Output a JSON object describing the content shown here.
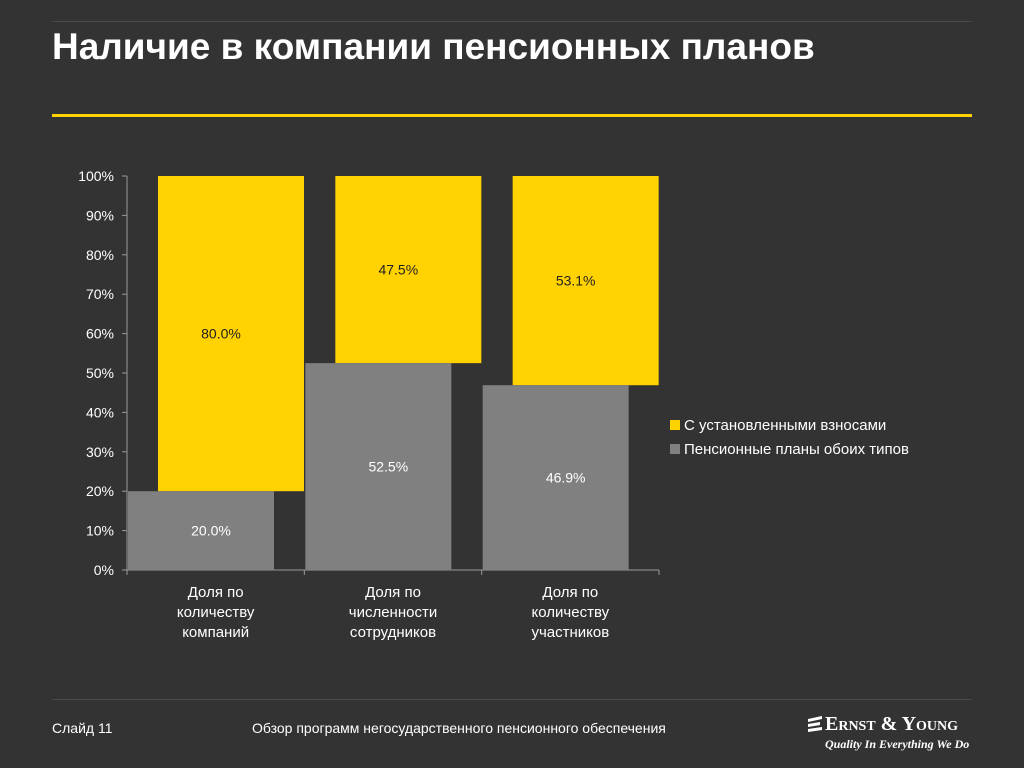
{
  "slide": {
    "title": "Наличие в компании пенсионных планов",
    "footer_left": "Слайд 11",
    "footer_center": "Обзор программ негосударственного пенсионного обеспечения",
    "logo_name": "Ernst & Young",
    "logo_tagline": "Quality In Everything We Do"
  },
  "colors": {
    "background": "#333333",
    "accent": "#ffd200",
    "gray_bar": "#808080"
  },
  "chart_data": {
    "type": "bar",
    "stacked": true,
    "categories": [
      "Доля по количеству компаний",
      "Доля по численности сотрудников",
      "Доля по количеству участников"
    ],
    "category_lines": [
      [
        "Доля по",
        "количеству",
        "компаний"
      ],
      [
        "Доля по",
        "численности",
        "сотрудников"
      ],
      [
        "Доля по",
        "количеству",
        "участников"
      ]
    ],
    "series": [
      {
        "name": "Пенсионные планы обоих типов",
        "values": [
          20.0,
          52.5,
          46.9
        ],
        "labels": [
          "20.0%",
          "52.5%",
          "46.9%"
        ],
        "color": "#808080"
      },
      {
        "name": "С установленными взносами",
        "values": [
          80.0,
          47.5,
          53.1
        ],
        "labels": [
          "80.0%",
          "47.5%",
          "53.1%"
        ],
        "color": "#ffd200"
      }
    ],
    "yticks": [
      "0%",
      "10%",
      "20%",
      "30%",
      "40%",
      "50%",
      "60%",
      "70%",
      "80%",
      "90%",
      "100%"
    ],
    "ylim": [
      0,
      100
    ],
    "legend_position": "right",
    "grid": false
  }
}
